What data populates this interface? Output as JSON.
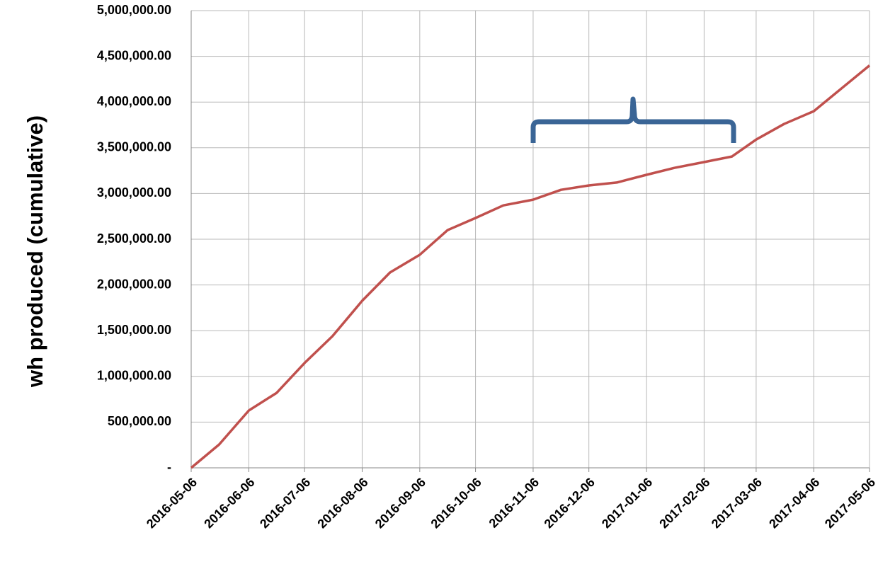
{
  "chart_data": {
    "type": "line",
    "y_label": "wh produced (cumulative)",
    "x": [
      "2016-05-06",
      "2016-05-21",
      "2016-06-06",
      "2016-06-21",
      "2016-07-06",
      "2016-07-21",
      "2016-08-06",
      "2016-08-21",
      "2016-09-06",
      "2016-09-21",
      "2016-10-06",
      "2016-10-21",
      "2016-11-06",
      "2016-11-21",
      "2016-12-06",
      "2016-12-21",
      "2017-01-06",
      "2017-01-21",
      "2017-02-06",
      "2017-02-21",
      "2017-03-06",
      "2017-03-21",
      "2017-04-06",
      "2017-04-21",
      "2017-05-06"
    ],
    "series": [
      {
        "color": "#c0504d",
        "values": [
          0,
          255000,
          627000,
          820000,
          1146000,
          1440000,
          1827000,
          2136000,
          2330000,
          2600000,
          2732000,
          2870000,
          2933000,
          3040000,
          3088000,
          3120000,
          3204000,
          3280000,
          3344000,
          3405000,
          3590000,
          3760000,
          3900000,
          4150000,
          4400000
        ]
      }
    ],
    "xlim": [
      "2016-05-06",
      "2017-05-06"
    ],
    "xticks": [
      "2016-05-06",
      "2016-06-06",
      "2016-07-06",
      "2016-08-06",
      "2016-09-06",
      "2016-10-06",
      "2016-11-06",
      "2016-12-06",
      "2017-01-06",
      "2017-02-06",
      "2017-03-06",
      "2017-04-06",
      "2017-05-06"
    ],
    "ylim": [
      0,
      5000000
    ],
    "yticks": [
      {
        "value": 0,
        "label": "-"
      },
      {
        "value": 500000,
        "label": "500,000.00"
      },
      {
        "value": 1000000,
        "label": "1,000,000.00"
      },
      {
        "value": 1500000,
        "label": "1,500,000.00"
      },
      {
        "value": 2000000,
        "label": "2,000,000.00"
      },
      {
        "value": 2500000,
        "label": "2,500,000.00"
      },
      {
        "value": 3000000,
        "label": "3,000,000.00"
      },
      {
        "value": 3500000,
        "label": "3,500,000.00"
      },
      {
        "value": 4000000,
        "label": "4,000,000.00"
      },
      {
        "value": 4500000,
        "label": "4,500,000.00"
      },
      {
        "value": 5000000,
        "label": "5,000,000.00"
      }
    ],
    "grid": true
  }
}
